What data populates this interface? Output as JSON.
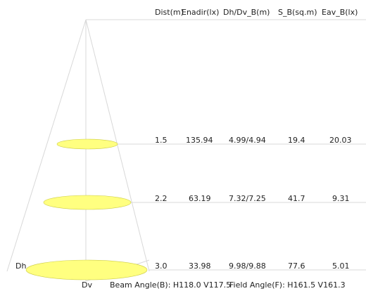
{
  "colors": {
    "beam_fill": "#ffff80",
    "beam_stroke": "#cccc44",
    "guide_line": "#d8d8d8",
    "text": "#222222"
  },
  "table": {
    "headers": [
      "Dist(m)",
      "Enadir(lx)",
      "Dh/Dv_B(m)",
      "S_B(sq.m)",
      "Eav_B(lx)"
    ],
    "rows": [
      [
        "1.5",
        "135.94",
        "4.99/4.94",
        "19.4",
        "20.03"
      ],
      [
        "2.2",
        "63.19",
        "7.32/7.25",
        "41.7",
        "9.31"
      ],
      [
        "3.0",
        "33.98",
        "9.98/9.88",
        "77.6",
        "5.01"
      ]
    ]
  },
  "axis_labels": {
    "dh": "Dh",
    "dv": "Dv"
  },
  "footer": {
    "beam_angle": "Beam Angle(B): H118.0 V117.5",
    "field_angle": "Field Angle(F): H161.5 V161.3"
  }
}
